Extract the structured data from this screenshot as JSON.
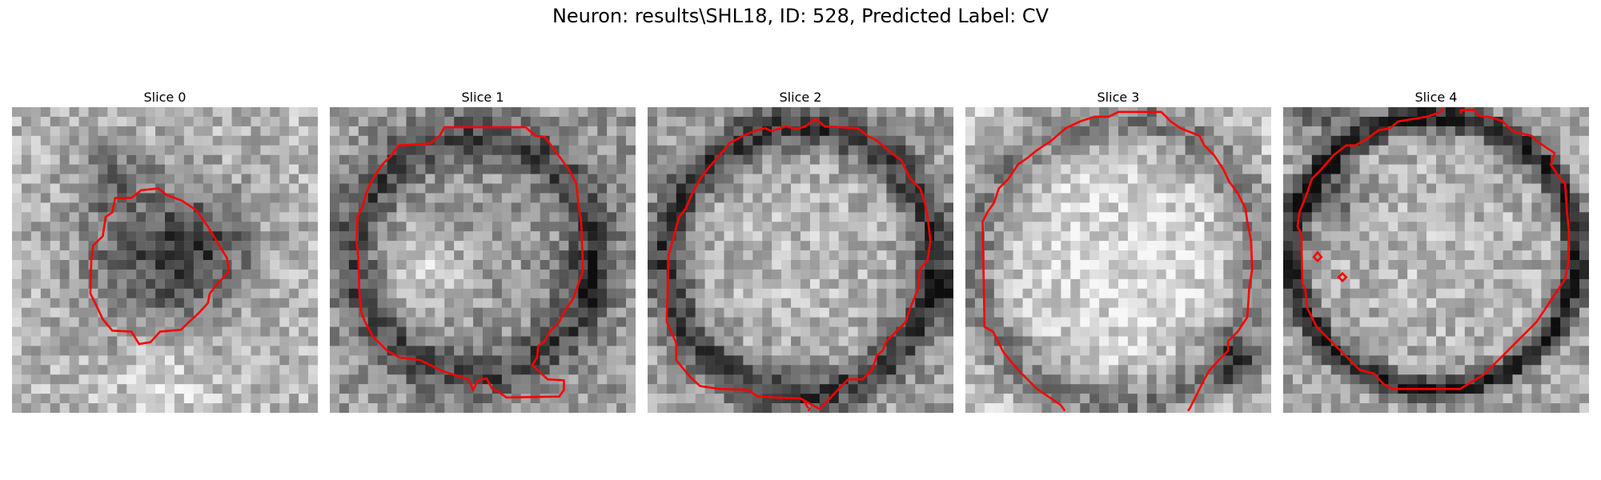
{
  "figure": {
    "suptitle": "Neuron: results\\SHL18, ID: 528, Predicted Label: CV",
    "contour_color": "#ff0000",
    "colormap": "gray",
    "panels": [
      {
        "title": "Slice 0",
        "structure": "small-dark-blob",
        "seed": 11
      },
      {
        "title": "Slice 1",
        "structure": "ring-bright-lower-left",
        "seed": 23
      },
      {
        "title": "Slice 2",
        "structure": "ring-dark-border",
        "seed": 37
      },
      {
        "title": "Slice 3",
        "structure": "bright-interior",
        "seed": 41
      },
      {
        "title": "Slice 4",
        "structure": "oval-dark-rim",
        "seed": 53
      }
    ]
  }
}
